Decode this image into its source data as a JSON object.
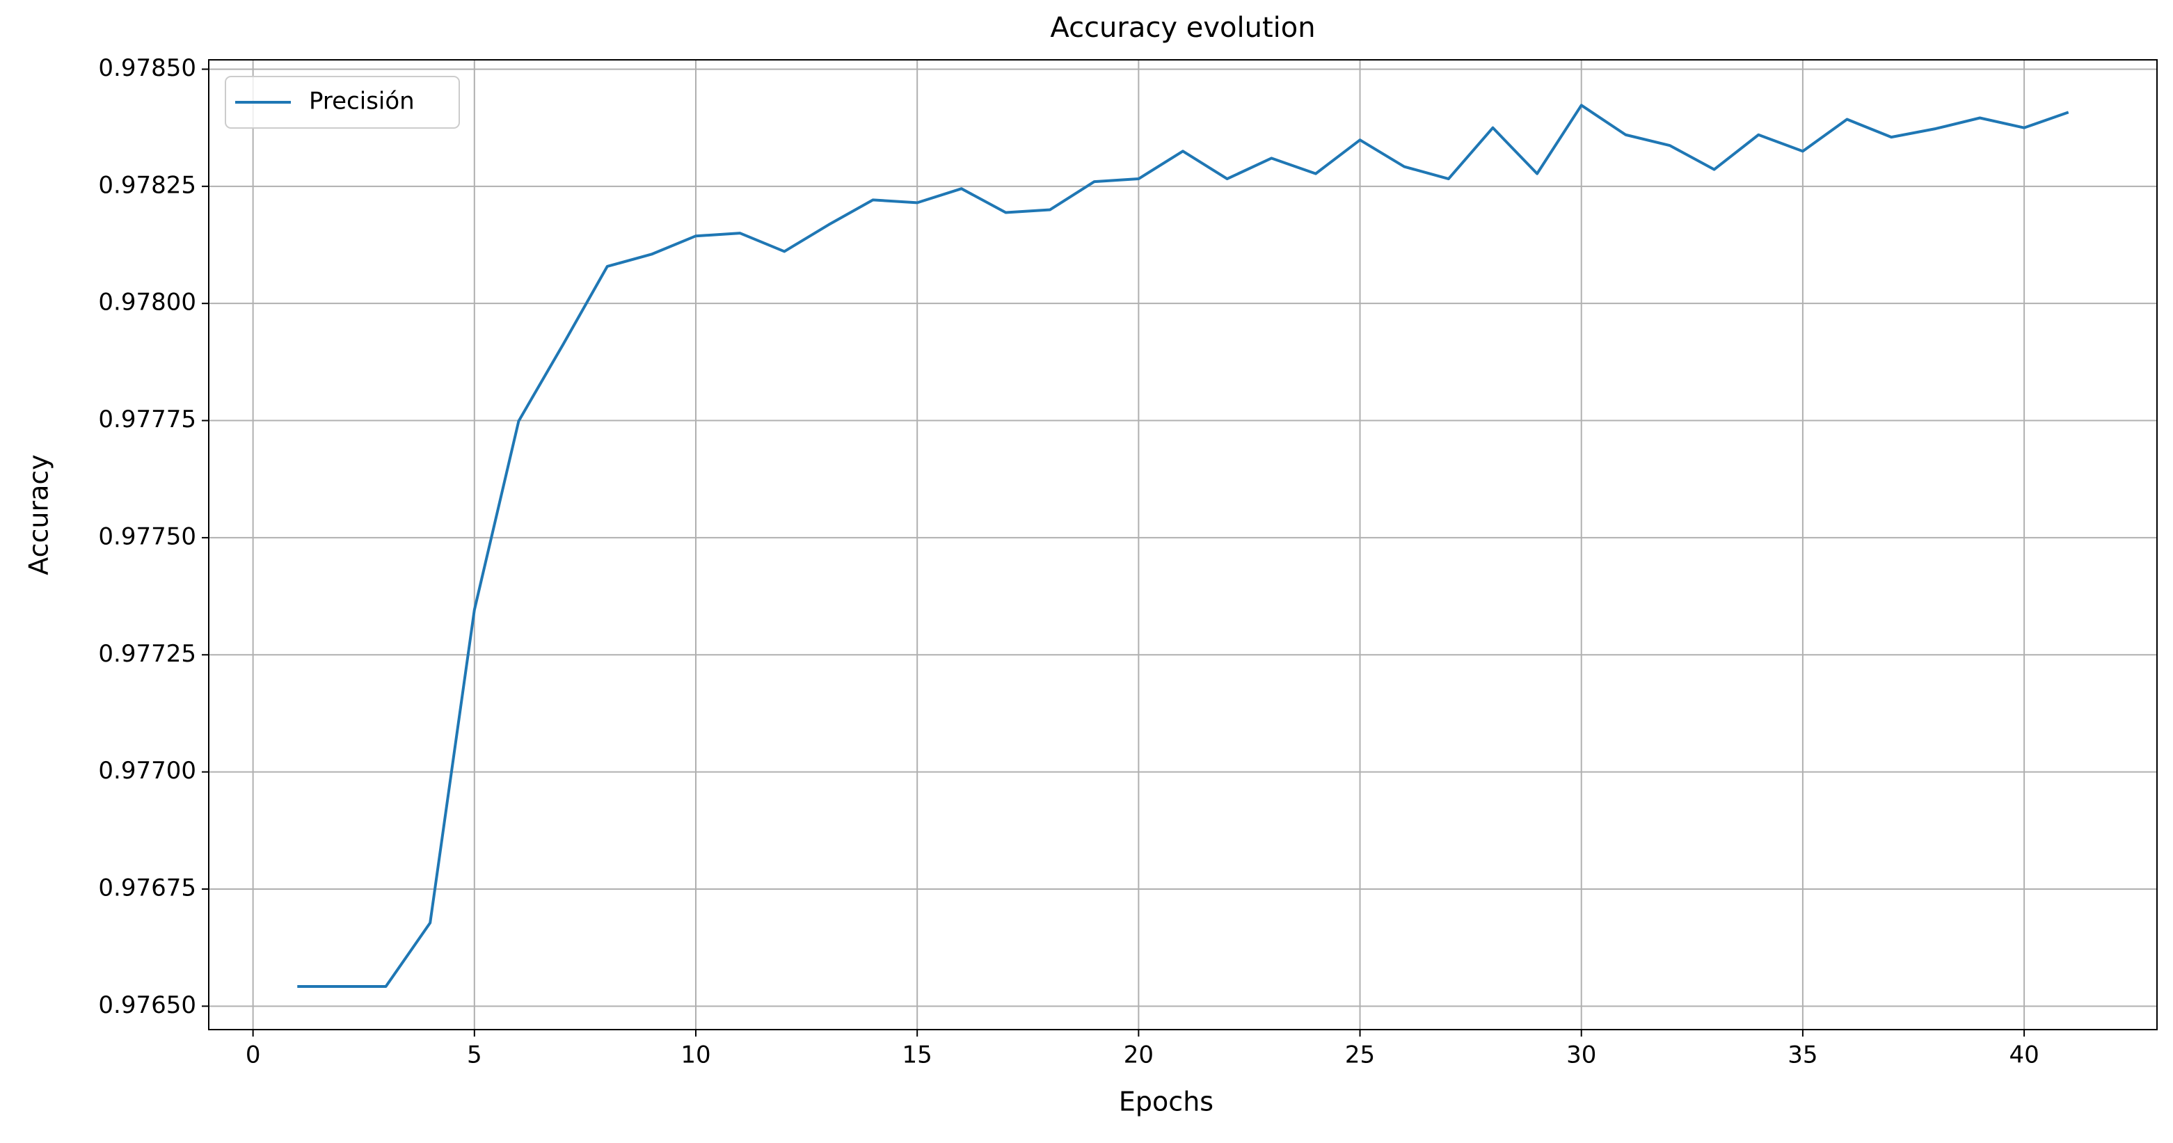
{
  "chart_data": {
    "type": "line",
    "title": "Accuracy evolution",
    "xlabel": "Epochs",
    "ylabel": "Accuracy",
    "x": [
      1,
      2,
      3,
      4,
      5,
      6,
      7,
      8,
      9,
      10,
      11,
      12,
      13,
      14,
      15,
      16,
      17,
      18,
      19,
      20,
      21,
      22,
      23,
      24,
      25,
      26,
      27,
      28,
      29,
      30,
      31,
      32,
      33,
      34,
      35,
      36,
      37,
      38,
      39,
      40,
      41
    ],
    "series": [
      {
        "name": "Precisión",
        "color": "#1f77b4",
        "values": [
          0.976542,
          0.976542,
          0.976542,
          0.976678,
          0.977346,
          0.977749,
          0.977912,
          0.978079,
          0.978105,
          0.978144,
          0.97815,
          0.978111,
          0.978168,
          0.978221,
          0.978215,
          0.978245,
          0.978194,
          0.9782,
          0.97826,
          0.978266,
          0.978325,
          0.978266,
          0.97831,
          0.978277,
          0.978349,
          0.978292,
          0.978266,
          0.978375,
          0.978277,
          0.978423,
          0.97836,
          0.978337,
          0.978286,
          0.97836,
          0.978325,
          0.978393,
          0.978355,
          0.978373,
          0.978396,
          0.978375,
          0.978408
        ]
      }
    ],
    "xlim": [
      -1,
      43
    ],
    "xticks": [
      0,
      5,
      10,
      15,
      20,
      25,
      30,
      35,
      40
    ],
    "ylim": [
      0.97645,
      0.97852
    ],
    "yticks": [
      {
        "value": 0.9765,
        "label": "0.97650"
      },
      {
        "value": 0.97675,
        "label": "0.97675"
      },
      {
        "value": 0.977,
        "label": "0.97700"
      },
      {
        "value": 0.97725,
        "label": "0.97725"
      },
      {
        "value": 0.9775,
        "label": "0.97750"
      },
      {
        "value": 0.97775,
        "label": "0.97775"
      },
      {
        "value": 0.978,
        "label": "0.97800"
      },
      {
        "value": 0.97825,
        "label": "0.97825"
      },
      {
        "value": 0.9785,
        "label": "0.97850"
      }
    ],
    "grid": true,
    "legend": "upper left"
  }
}
